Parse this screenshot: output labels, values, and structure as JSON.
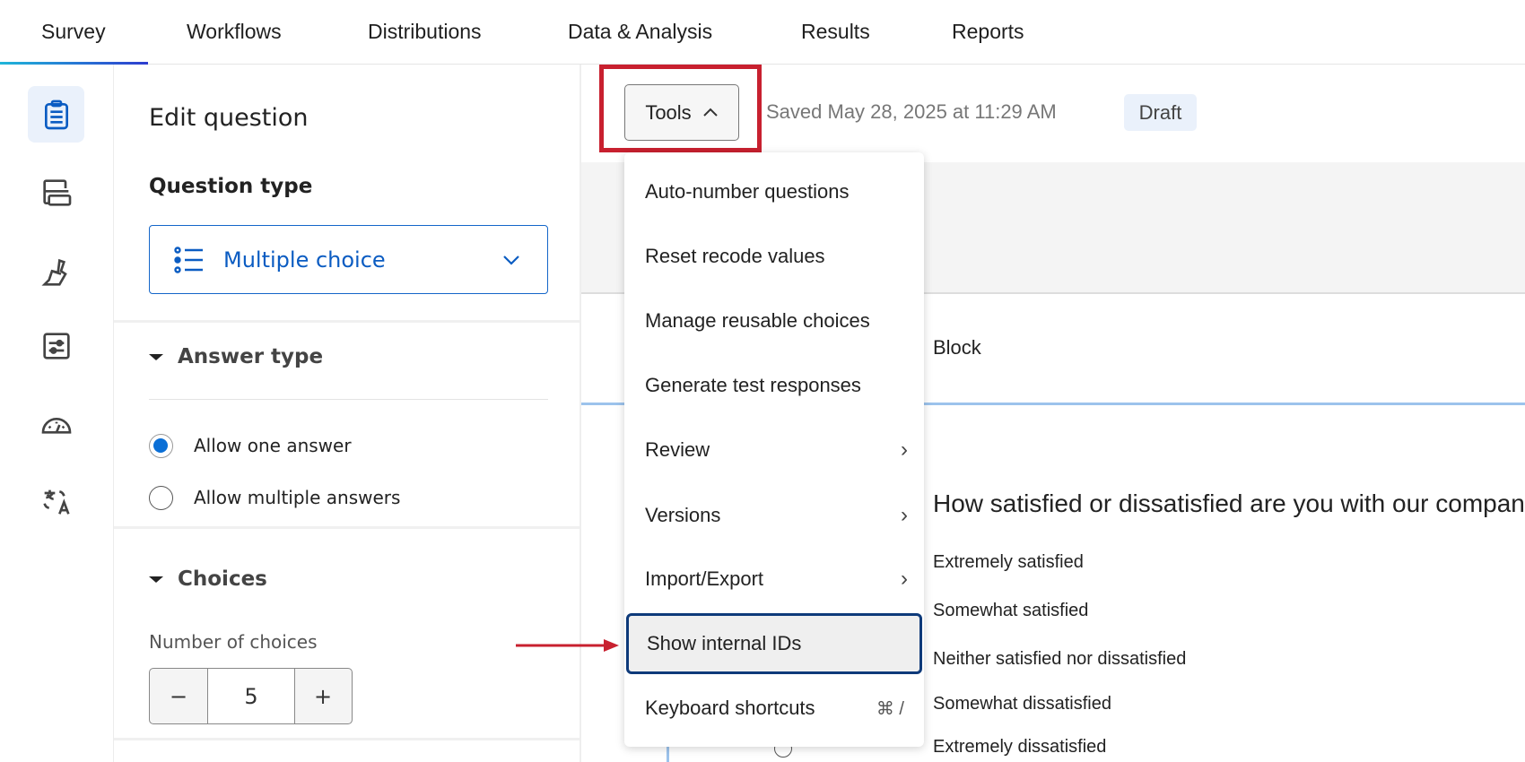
{
  "topnav": {
    "tabs": [
      {
        "label": "Survey",
        "active": true
      },
      {
        "label": "Workflows"
      },
      {
        "label": "Distributions"
      },
      {
        "label": "Data & Analysis"
      },
      {
        "label": "Results"
      },
      {
        "label": "Reports"
      }
    ]
  },
  "rail": {
    "icons": [
      "clipboard-icon",
      "blocks-icon",
      "paintbrush-icon",
      "sliders-icon",
      "gauge-icon",
      "translate-icon"
    ],
    "active": "clipboard-icon"
  },
  "panel": {
    "title": "Edit question",
    "question_type_label": "Question type",
    "question_type_value": "Multiple choice",
    "answer_type": {
      "heading": "Answer type",
      "options": [
        {
          "label": "Allow one answer",
          "selected": true
        },
        {
          "label": "Allow multiple answers",
          "selected": false
        }
      ]
    },
    "choices": {
      "heading": "Choices",
      "count_label": "Number of choices",
      "count": "5",
      "minus": "−",
      "plus": "+"
    }
  },
  "header": {
    "tools_label": "Tools",
    "saved_text": "Saved May 28, 2025 at 11:29 AM",
    "status_badge": "Draft"
  },
  "canvas": {
    "block_title": "Block",
    "question_text": "How satisfied or dissatisfied are you with our company",
    "choices": [
      "Extremely satisfied",
      "Somewhat satisfied",
      "Neither satisfied nor dissatisfied",
      "Somewhat dissatisfied",
      "Extremely dissatisfied"
    ]
  },
  "tools_menu": {
    "items": [
      {
        "label": "Auto-number questions"
      },
      {
        "label": "Reset recode values"
      },
      {
        "label": "Manage reusable choices"
      },
      {
        "label": "Generate test responses"
      },
      {
        "label": "Review",
        "submenu": true
      },
      {
        "label": "Versions",
        "submenu": true
      },
      {
        "label": "Import/Export",
        "submenu": true
      },
      {
        "label": "Show internal IDs",
        "highlighted": true
      },
      {
        "label": "Keyboard shortcuts",
        "shortcut": "⌘ /"
      }
    ]
  },
  "colors": {
    "accent": "#0b5cc2",
    "annotation_red": "#c8202f",
    "highlight_border": "#0e3a7a"
  }
}
